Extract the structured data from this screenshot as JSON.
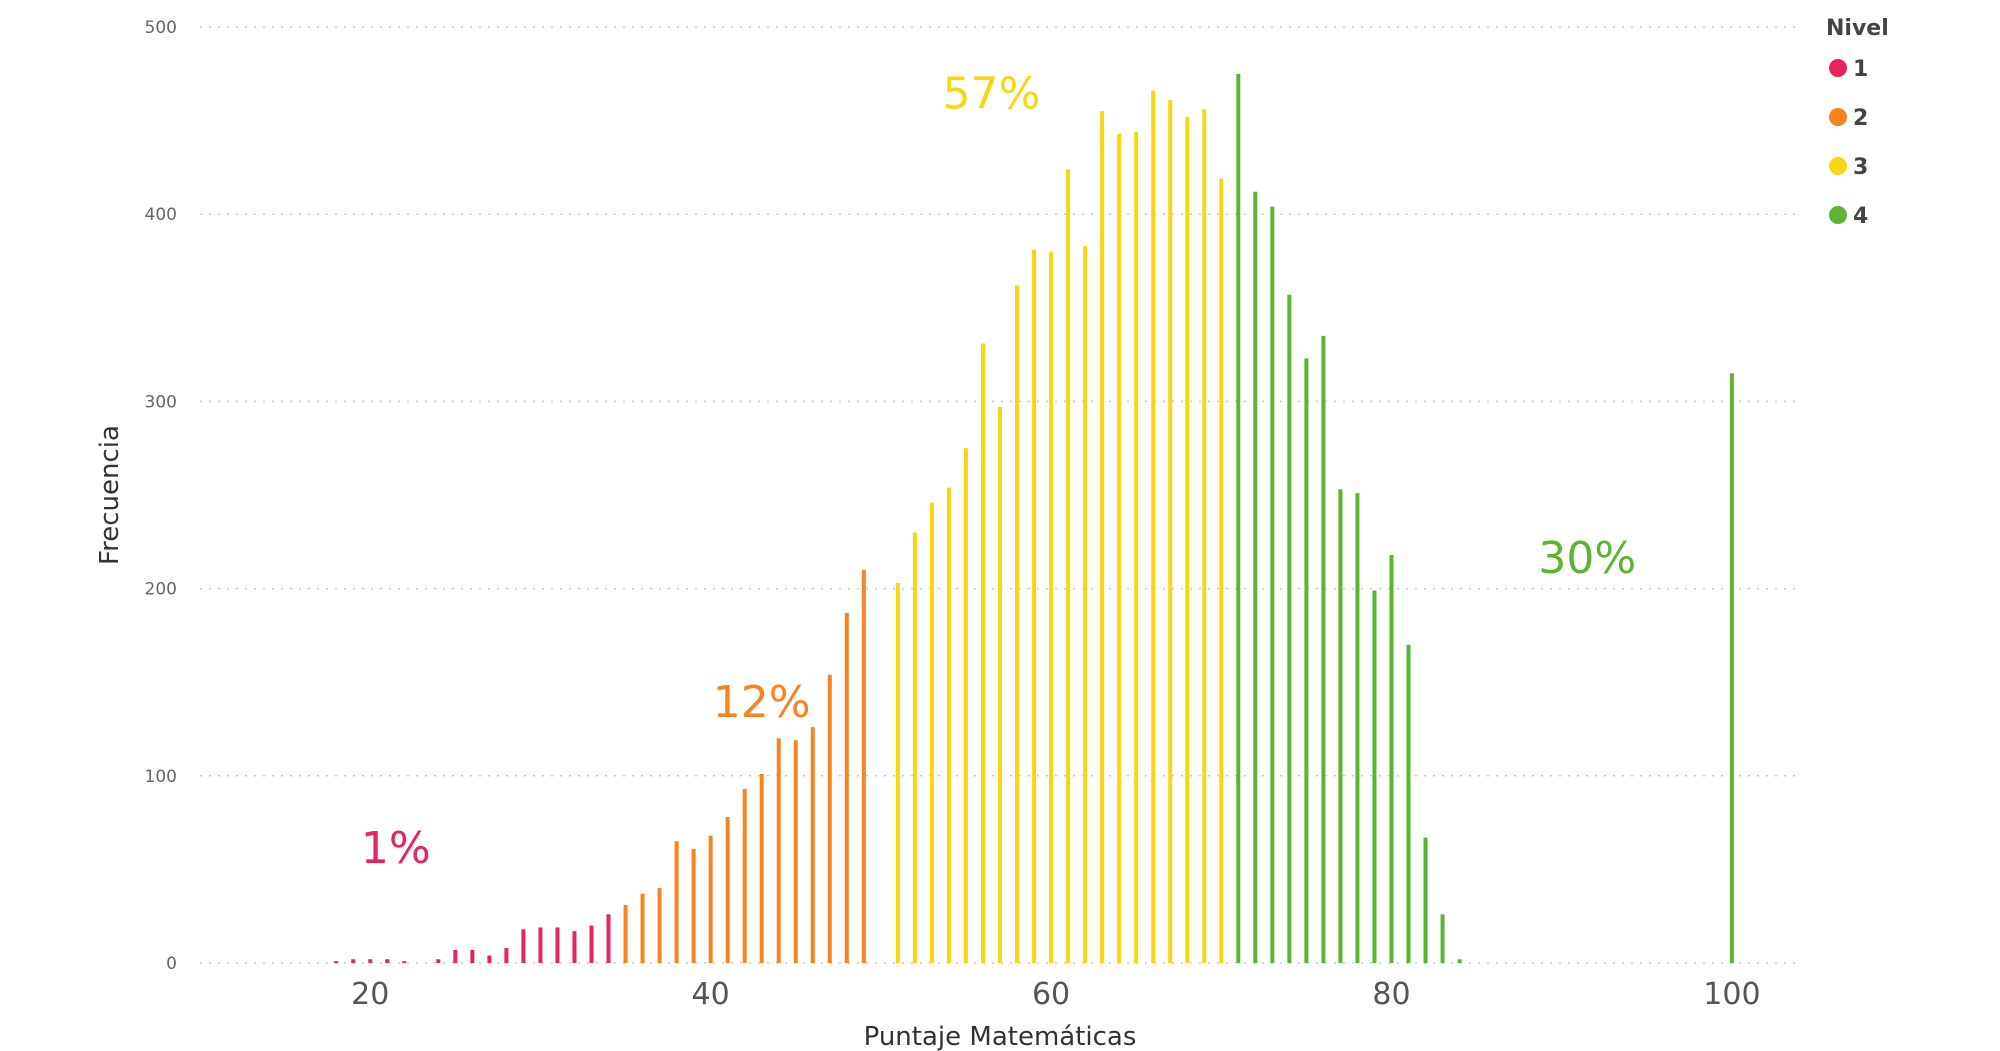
{
  "chart_data": {
    "type": "bar",
    "xlabel": "Puntaje Matemáticas",
    "ylabel": "Frecuencia",
    "xlim": [
      10,
      104
    ],
    "ylim": [
      0,
      500
    ],
    "x_ticks": [
      20,
      40,
      60,
      80,
      100
    ],
    "y_ticks": [
      0,
      100,
      200,
      300,
      400,
      500
    ],
    "grid": "horizontal-dotted",
    "legend": {
      "title": "Nivel",
      "placement": "top-right",
      "entries": [
        {
          "label": "1",
          "color": "#e8245e"
        },
        {
          "label": "2",
          "color": "#f7841e"
        },
        {
          "label": "3",
          "color": "#f7d80f"
        },
        {
          "label": "4",
          "color": "#5bb432"
        }
      ]
    },
    "series": [
      {
        "name": "1",
        "color": "#e8245e",
        "x": [
          18,
          19,
          20,
          21,
          22,
          23,
          24,
          25,
          26,
          27,
          28,
          29,
          30,
          31,
          32,
          33,
          34
        ],
        "values": [
          1,
          2,
          2,
          2,
          1,
          0,
          2,
          7,
          7,
          4,
          8,
          18,
          19,
          19,
          17,
          20,
          26
        ]
      },
      {
        "name": "2",
        "color": "#f7841e",
        "x": [
          35,
          36,
          37,
          38,
          39,
          40,
          41,
          42,
          43,
          44,
          45,
          46,
          47,
          48,
          49
        ],
        "values": [
          31,
          37,
          40,
          65,
          61,
          68,
          78,
          93,
          101,
          120,
          119,
          126,
          154,
          187,
          210
        ]
      },
      {
        "name": "3",
        "color": "#f7d80f",
        "x": [
          51,
          52,
          53,
          54,
          55,
          56,
          57,
          58,
          59,
          60,
          61,
          62,
          63,
          64,
          65,
          66,
          67,
          68,
          69,
          70
        ],
        "values": [
          203,
          230,
          246,
          254,
          275,
          331,
          297,
          362,
          381,
          380,
          424,
          383,
          455,
          443,
          444,
          466,
          461,
          452,
          456,
          419
        ]
      },
      {
        "name": "4",
        "color": "#5bb432",
        "x": [
          71,
          72,
          73,
          74,
          75,
          76,
          77,
          78,
          79,
          80,
          81,
          82,
          83,
          84,
          100
        ],
        "values": [
          475,
          412,
          404,
          357,
          323,
          335,
          253,
          251,
          199,
          218,
          170,
          67,
          26,
          2,
          315
        ]
      }
    ],
    "annotations": [
      {
        "text": "1%",
        "series": "1",
        "x": 21.5,
        "y": 62
      },
      {
        "text": "12%",
        "series": "2",
        "x": 43,
        "y": 140
      },
      {
        "text": "57%",
        "series": "3",
        "x": 56.5,
        "y": 465
      },
      {
        "text": "30%",
        "series": "4",
        "x": 91.5,
        "y": 217
      }
    ]
  }
}
